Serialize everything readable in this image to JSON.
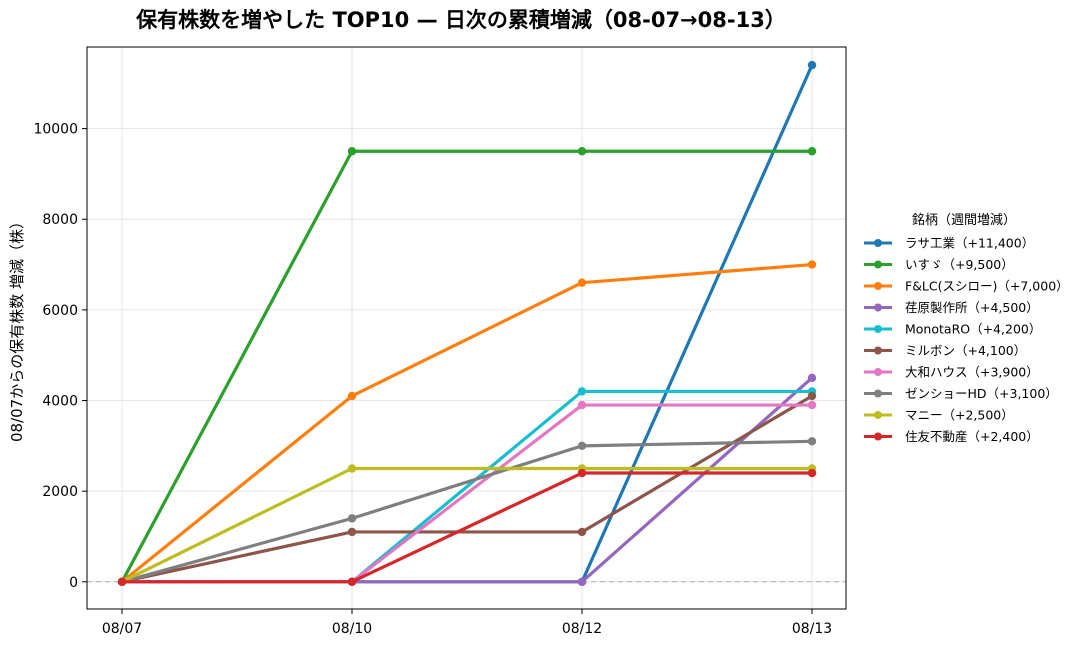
{
  "chart_data": {
    "type": "line",
    "title": "保有株数を増やした TOP10 — 日次の累積増減（08-07→08-13）",
    "xlabel": "",
    "ylabel": "08/07からの保有株数 増減（株）",
    "categories": [
      "08/07",
      "08/10",
      "08/12",
      "08/13"
    ],
    "ylim": [
      -600,
      11800
    ],
    "yticks": [
      0,
      2000,
      4000,
      6000,
      8000,
      10000
    ],
    "grid": true,
    "zero_line": "dashed",
    "legend_title": "銘柄（週間増減）",
    "legend_position": "right",
    "series": [
      {
        "name": "ラサ工業（+11,400）",
        "color": "#1f77b4",
        "values": [
          0,
          0,
          0,
          11400
        ]
      },
      {
        "name": "いすゞ（+9,500）",
        "color": "#2ca02c",
        "values": [
          0,
          9500,
          9500,
          9500
        ]
      },
      {
        "name": "F&LC(スシロー)（+7,000）",
        "color": "#ff7f0e",
        "values": [
          0,
          4100,
          6600,
          7000
        ]
      },
      {
        "name": "荏原製作所（+4,500）",
        "color": "#9467bd",
        "values": [
          0,
          0,
          0,
          4500
        ]
      },
      {
        "name": "MonotaRO（+4,200）",
        "color": "#17becf",
        "values": [
          0,
          0,
          4200,
          4200
        ]
      },
      {
        "name": "ミルボン（+4,100）",
        "color": "#8c564b",
        "values": [
          0,
          1100,
          1100,
          4100
        ]
      },
      {
        "name": "大和ハウス（+3,900）",
        "color": "#e377c2",
        "values": [
          0,
          0,
          3900,
          3900
        ]
      },
      {
        "name": "ゼンショーHD（+3,100）",
        "color": "#7f7f7f",
        "values": [
          0,
          1400,
          3000,
          3100
        ]
      },
      {
        "name": "マニー（+2,500）",
        "color": "#bcbd22",
        "values": [
          0,
          2500,
          2500,
          2500
        ]
      },
      {
        "name": "住友不動産（+2,400）",
        "color": "#d62728",
        "values": [
          0,
          0,
          2400,
          2400
        ]
      }
    ]
  }
}
